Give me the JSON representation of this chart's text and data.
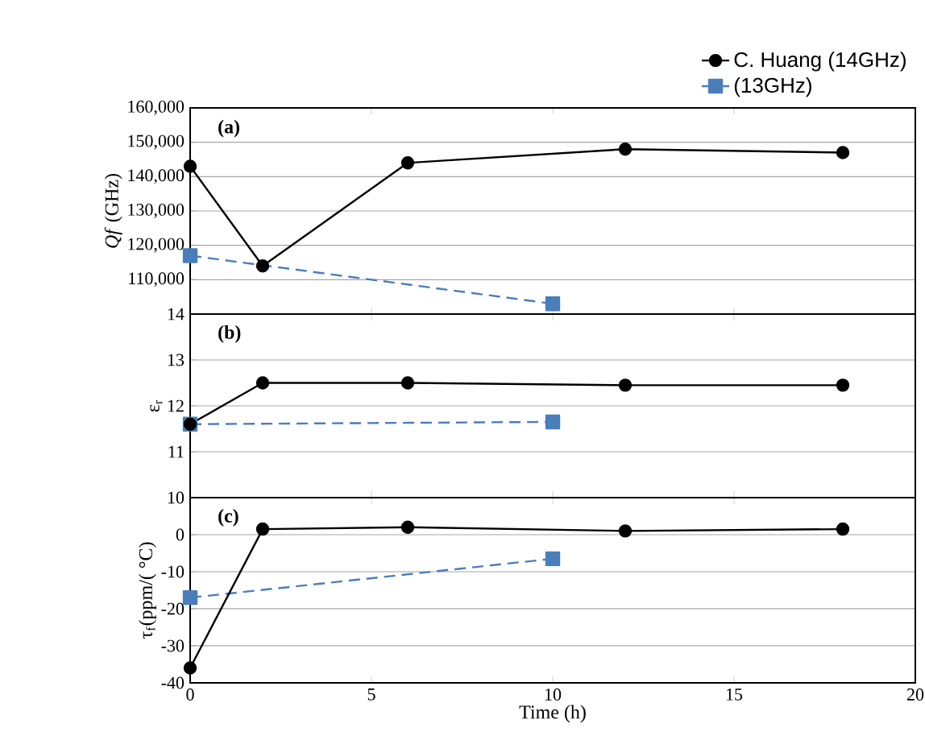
{
  "chart_data": [
    {
      "type": "line",
      "ylabel": "*Qf* (GHz)",
      "annotations": [
        "(a)"
      ],
      "xlim": [
        0,
        20
      ],
      "xticks": [
        0,
        5,
        10,
        15,
        20
      ],
      "ylim": [
        100000,
        160000
      ],
      "yticks": [
        {
          "value": 110000,
          "label": "110,000"
        },
        {
          "value": 120000,
          "label": "120,000"
        },
        {
          "value": 130000,
          "label": "130,000"
        },
        {
          "value": 140000,
          "label": "140,000"
        },
        {
          "value": 150000,
          "label": "150,000"
        },
        {
          "value": 160000,
          "label": "160,000"
        }
      ],
      "grid": "y",
      "tick_labels": "y",
      "legend": "top right",
      "series": [
        {
          "name": "C. Huang (14GHz)",
          "color": "#000000",
          "marker": "circle",
          "line_style": "solid",
          "x": [
            0,
            2,
            6,
            12,
            18
          ],
          "values": [
            143000,
            114000,
            144000,
            148000,
            147000
          ]
        },
        {
          "name": "(13GHz)",
          "color": "#4a7ebb",
          "marker": "square",
          "line_style": "dashed",
          "x": [
            0,
            10
          ],
          "values": [
            117000,
            103000
          ]
        }
      ]
    },
    {
      "type": "line",
      "ylabel": "ε$_{r}$",
      "annotations": [
        "(b)"
      ],
      "xlim": [
        0,
        20
      ],
      "xticks": [
        0,
        5,
        10,
        15,
        20
      ],
      "ylim": [
        10,
        14
      ],
      "yticks": [
        11,
        12,
        13,
        14
      ],
      "grid": "y",
      "tick_labels": "y",
      "series": [
        {
          "color": "#000000",
          "marker": "circle",
          "line_style": "solid",
          "x": [
            0,
            2,
            6,
            12,
            18
          ],
          "values": [
            11.6,
            12.5,
            12.5,
            12.45,
            12.45
          ]
        },
        {
          "color": "#4a7ebb",
          "marker": "square",
          "line_style": "dashed",
          "x": [
            0,
            10
          ],
          "values": [
            11.6,
            11.65
          ]
        }
      ]
    },
    {
      "type": "line",
      "xlabel": "Time (h)",
      "ylabel": "τ$_{f}$(ppm/( °C)",
      "annotations": [
        "(c)"
      ],
      "xlim": [
        0,
        20
      ],
      "xticks": [
        0,
        5,
        10,
        15,
        20
      ],
      "ylim": [
        -40,
        10
      ],
      "yticks": [
        -40,
        -30,
        -20,
        -10,
        0,
        10
      ],
      "grid": "y",
      "series": [
        {
          "color": "#000000",
          "marker": "circle",
          "line_style": "solid",
          "x": [
            0,
            2,
            6,
            12,
            18
          ],
          "values": [
            -36,
            1.5,
            2,
            1,
            1.5
          ]
        },
        {
          "color": "#4a7ebb",
          "marker": "square",
          "line_style": "dashed",
          "x": [
            0,
            10
          ],
          "values": [
            -17,
            -6.5
          ]
        }
      ]
    }
  ]
}
